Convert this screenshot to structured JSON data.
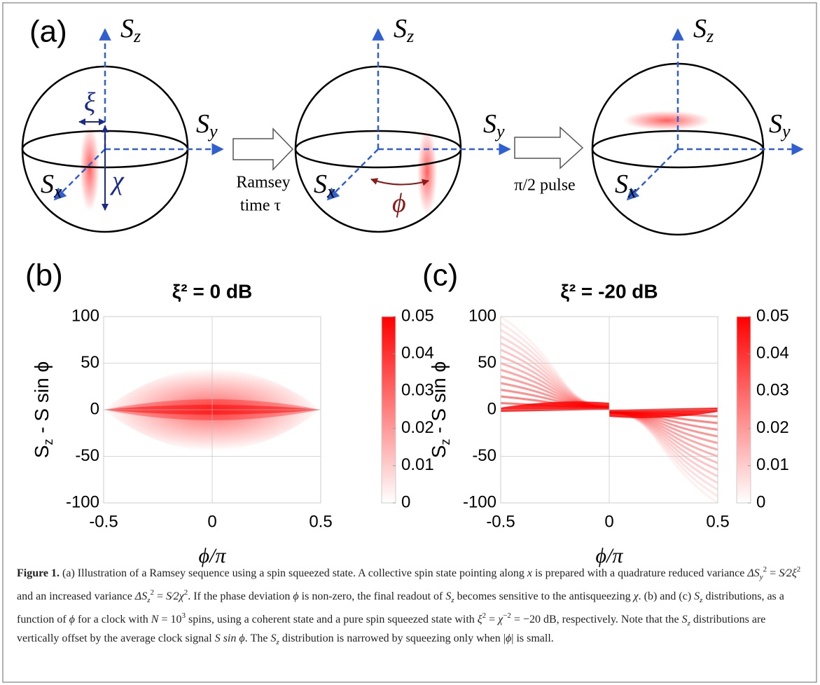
{
  "panel_a": {
    "label": "(a)",
    "spheres": [
      {
        "sz": {
          "base": "S",
          "sub": "z"
        },
        "sy": {
          "base": "S",
          "sub": "y"
        },
        "sx": {
          "base": "S",
          "sub": "x"
        },
        "annotations": [
          "ξ",
          "χ"
        ]
      },
      {
        "sz": {
          "base": "S",
          "sub": "z"
        },
        "sy": {
          "base": "S",
          "sub": "y"
        },
        "sx": {
          "base": "S",
          "sub": "x"
        },
        "annotations": [
          "ϕ"
        ]
      },
      {
        "sz": {
          "base": "S",
          "sub": "z"
        },
        "sy": {
          "base": "S",
          "sub": "y"
        },
        "sx": {
          "base": "S",
          "sub": "x"
        }
      }
    ],
    "arrows": [
      {
        "lines": [
          "Ramsey",
          "time τ"
        ]
      },
      {
        "lines": [
          "π/2 pulse"
        ]
      }
    ]
  },
  "chart_data": [
    {
      "type": "heatmap",
      "panel_label": "(b)",
      "title": "ξ² = 0 dB",
      "xlabel": "ϕ/π",
      "ylabel": [
        "S",
        "z",
        " - S sin ϕ"
      ],
      "xlim": [
        -0.5,
        0.5
      ],
      "xticks": [
        -0.5,
        0,
        0.5
      ],
      "ylim": [
        -100,
        100
      ],
      "yticks": [
        -100,
        -50,
        0,
        50,
        100
      ],
      "grid": true,
      "color": "#ff0000",
      "clim": [
        0,
        0.05
      ],
      "cticks": [
        0,
        0.01,
        0.02,
        0.03,
        0.04,
        0.05
      ]
    },
    {
      "type": "heatmap",
      "panel_label": "(c)",
      "title": "ξ² = -20 dB",
      "xlabel": "ϕ/π",
      "ylabel": [
        "S",
        "z",
        " - S sin ϕ"
      ],
      "xlim": [
        -0.5,
        0.5
      ],
      "xticks": [
        -0.5,
        0,
        0.5
      ],
      "ylim": [
        -100,
        100
      ],
      "yticks": [
        -100,
        -50,
        0,
        50,
        100
      ],
      "grid": true,
      "color": "#ff0000",
      "clim": [
        0,
        0.05
      ],
      "cticks": [
        0,
        0.01,
        0.02,
        0.03,
        0.04,
        0.05
      ]
    }
  ],
  "caption": [
    "Figure 1.",
    " (a) Illustration of a Ramsey sequence using a spin squeezed state. A collective spin state pointing along ",
    "x",
    " is prepared with a quadrature reduced variance ",
    "ΔS",
    "y",
    "2",
    " = ",
    "S⁄2",
    "ξ",
    "2",
    " and an increased variance ",
    "ΔS",
    "z",
    "2",
    " = ",
    "S⁄2",
    "χ",
    "2",
    ". If the phase deviation ",
    "ϕ",
    " is non-zero, the final readout of ",
    "S",
    "z",
    " becomes sensitive to the antisqueezing ",
    "χ",
    ". (b) and (c) ",
    "S",
    "z",
    " distributions, as a function of ",
    "ϕ",
    " for a clock with ",
    "N",
    " = 10",
    "3",
    " spins, using a coherent state and a pure spin squeezed state with ",
    "ξ",
    "2",
    " = ",
    "χ",
    "−2",
    " = −20 dB, respectively. Note that the ",
    "S",
    "z",
    " distributions are vertically offset by the average clock signal ",
    "S sin ϕ",
    ". The ",
    "S",
    "z",
    " distribution is narrowed by squeezing only when |",
    "ϕ",
    "| is small."
  ]
}
